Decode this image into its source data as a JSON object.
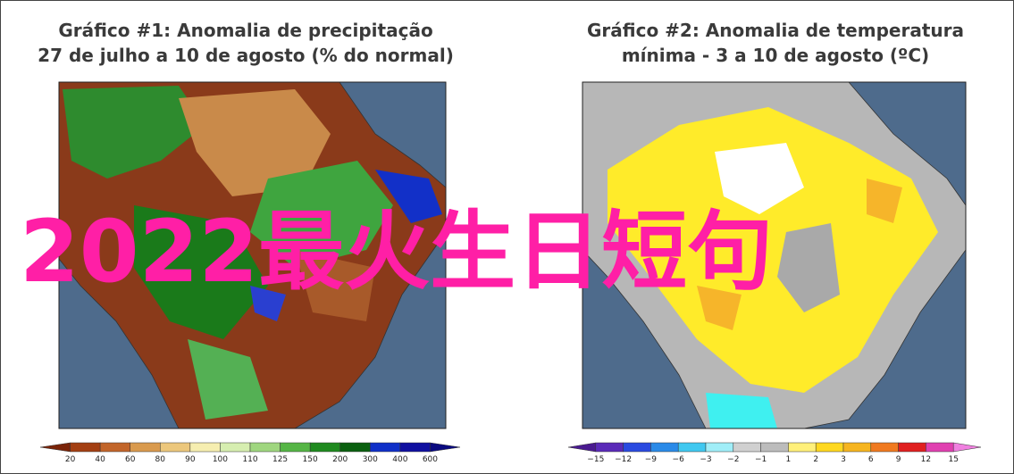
{
  "panels": [
    {
      "title_line1": "Gráfico #1: Anomalia de precipitação",
      "title_line2": "27 de julho a 10 de agosto (% do normal)",
      "colorbar_labels": [
        "20",
        "40",
        "60",
        "80",
        "90",
        "100",
        "110",
        "125",
        "150",
        "200",
        "300",
        "400",
        "600"
      ]
    },
    {
      "title_line1": "Gráfico #2: Anomalia de temperatura",
      "title_line2": "mínima - 3 a 10 de agosto (ºC)",
      "colorbar_labels": [
        "−15",
        "−12",
        "−9",
        "−6",
        "−3",
        "−2",
        "−1",
        "1",
        "2",
        "3",
        "6",
        "9",
        "12",
        "15"
      ]
    }
  ],
  "overlay": "2022最火生日短句"
}
